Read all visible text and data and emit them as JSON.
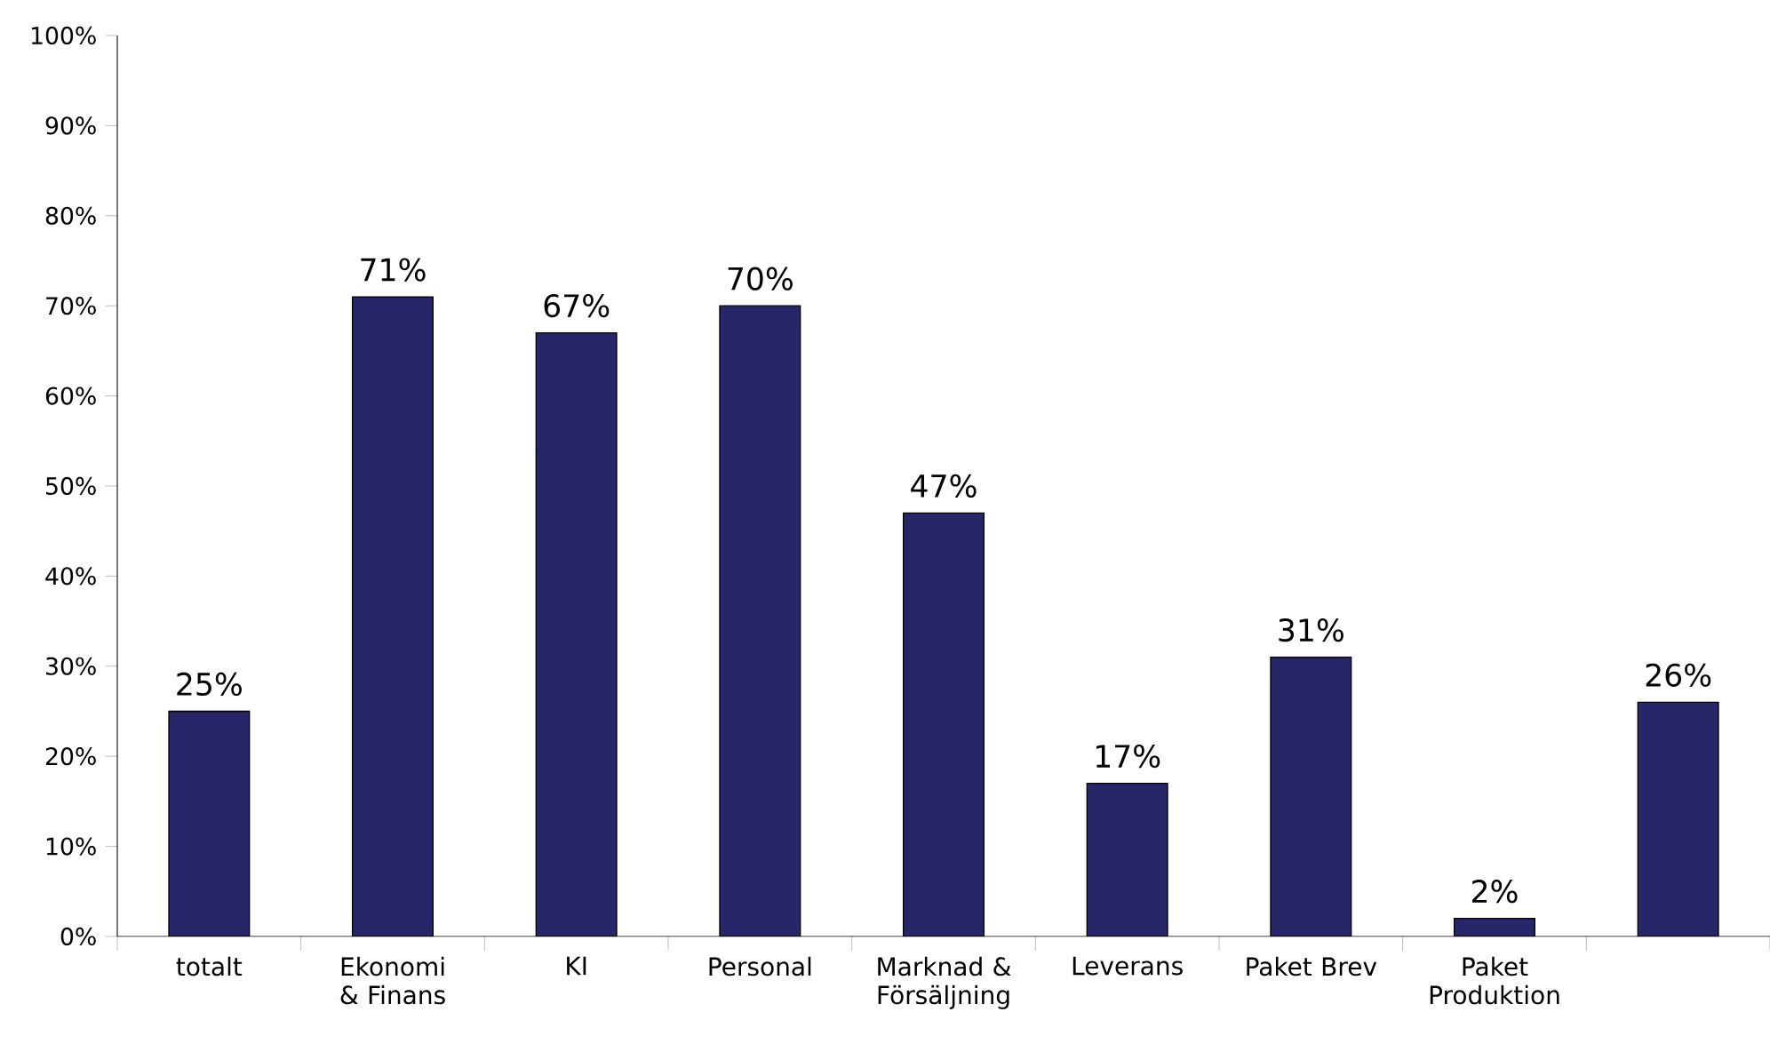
{
  "chart_data": {
    "type": "bar",
    "categories": [
      "totalt",
      "Ekonomi & Finans",
      "KI",
      "Personal",
      "Marknad & Försäljning",
      "Leverans",
      "Paket Brev",
      "Paket Produktion",
      null
    ],
    "values": [
      25,
      71,
      67,
      70,
      47,
      17,
      31,
      2,
      26
    ],
    "value_labels": [
      "25%",
      "71%",
      "67%",
      "70%",
      "47%",
      "17%",
      "31%",
      "2%",
      "26%"
    ],
    "color": "#262668",
    "ylim": [
      0,
      100
    ],
    "yticks": [
      {
        "value": 0,
        "label": "0%"
      },
      {
        "value": 10,
        "label": "10%"
      },
      {
        "value": 20,
        "label": "20%"
      },
      {
        "value": 30,
        "label": "30%"
      },
      {
        "value": 40,
        "label": "40%"
      },
      {
        "value": 50,
        "label": "50%"
      },
      {
        "value": 60,
        "label": "60%"
      },
      {
        "value": 70,
        "label": "70%"
      },
      {
        "value": 80,
        "label": "80%"
      },
      {
        "value": 90,
        "label": "90%"
      },
      {
        "value": 100,
        "label": "100%"
      }
    ],
    "grid": false
  }
}
